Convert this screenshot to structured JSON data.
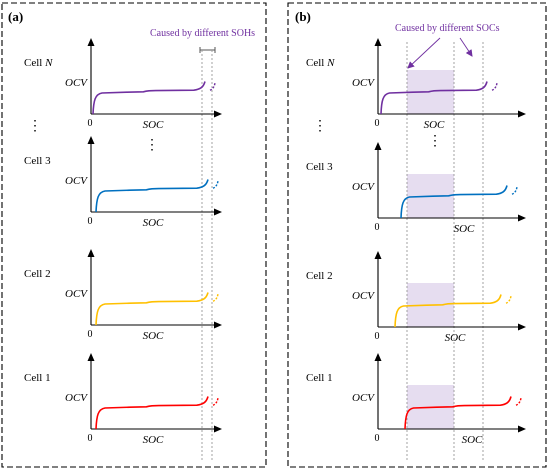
{
  "panels": [
    {
      "id": "a",
      "label": "(a)",
      "annotation": "Caused by different SOHs",
      "cells": [
        {
          "name": "Cell",
          "suffix": "N",
          "suffix_italic": true,
          "color": "#7030A0"
        },
        {
          "name": "Cell 3",
          "suffix": "",
          "suffix_italic": false,
          "color": "#0070C0"
        },
        {
          "name": "Cell 2",
          "suffix": "",
          "suffix_italic": false,
          "color": "#FFC000"
        },
        {
          "name": "Cell 1",
          "suffix": "",
          "suffix_italic": false,
          "color": "#FF0000"
        }
      ]
    },
    {
      "id": "b",
      "label": "(b)",
      "annotation": "Caused by different SOCs",
      "cells": [
        {
          "name": "Cell",
          "suffix": "N",
          "suffix_italic": true,
          "color": "#7030A0"
        },
        {
          "name": "Cell 3",
          "suffix": "",
          "suffix_italic": false,
          "color": "#0070C0"
        },
        {
          "name": "Cell 2",
          "suffix": "",
          "suffix_italic": false,
          "color": "#FFC000"
        },
        {
          "name": "Cell 1",
          "suffix": "",
          "suffix_italic": false,
          "color": "#FF0000"
        }
      ]
    }
  ],
  "axis": {
    "y_label": "OCV",
    "x_label": "SOC",
    "origin": "0"
  },
  "ellipsis": "⋮",
  "colors": {
    "annotation": "#7030A0",
    "shade": "#E6DDF0",
    "guide": "#999999"
  }
}
